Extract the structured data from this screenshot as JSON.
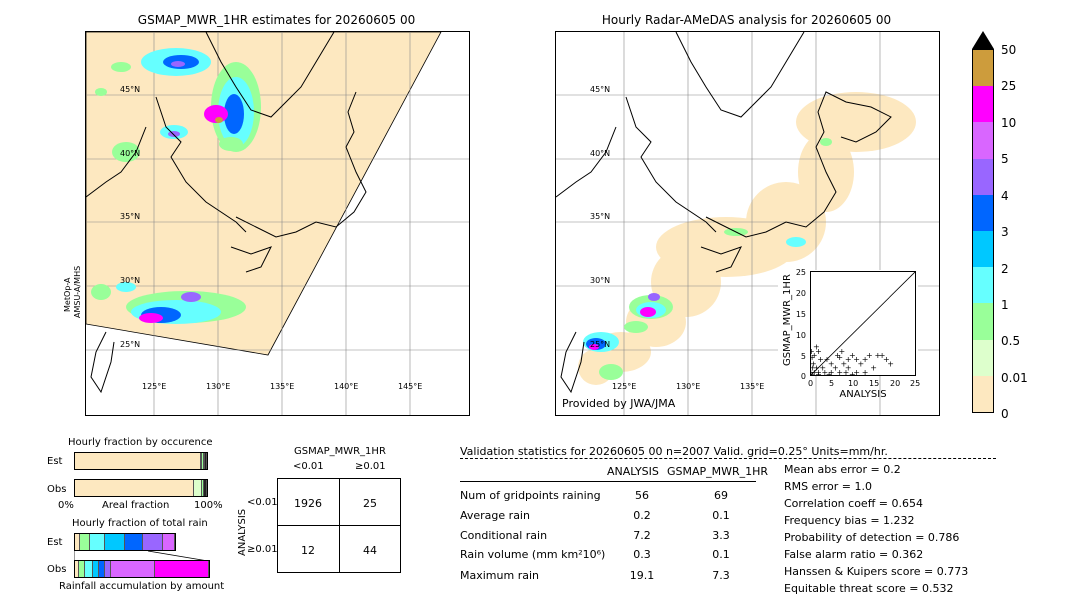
{
  "left_map": {
    "title": "GSMAP_MWR_1HR estimates for 20260605 00",
    "side_label_1": "MetOp-A",
    "side_label_2": "AMSU-A/MHS",
    "lat_labels": [
      "45°N",
      "40°N",
      "35°N",
      "30°N",
      "25°N"
    ],
    "lon_labels": [
      "125°E",
      "130°E",
      "135°E",
      "140°E",
      "145°E"
    ]
  },
  "right_map": {
    "title": "Hourly Radar-AMeDAS analysis for 20260605 00",
    "lat_labels": [
      "45°N",
      "40°N",
      "35°N",
      "30°N",
      "25°N"
    ],
    "lon_labels": [
      "125°E",
      "130°E",
      "135°E"
    ],
    "credit": "Provided by JWA/JMA"
  },
  "scatter": {
    "xlabel": "ANALYSIS",
    "ylabel": "GSMAP_MWR_1HR",
    "ticks": [
      "0",
      "5",
      "10",
      "15",
      "20",
      "25"
    ],
    "points": [
      [
        0.5,
        0.3
      ],
      [
        1,
        1
      ],
      [
        1.5,
        2
      ],
      [
        2,
        1
      ],
      [
        0.8,
        3
      ],
      [
        0.5,
        4.5
      ],
      [
        2.5,
        4
      ],
      [
        3,
        2
      ],
      [
        1,
        5
      ],
      [
        2,
        6
      ],
      [
        3.5,
        1
      ],
      [
        4,
        4
      ],
      [
        5,
        3
      ],
      [
        5,
        1
      ],
      [
        6,
        2
      ],
      [
        6.5,
        5
      ],
      [
        7,
        4.5
      ],
      [
        7.5,
        6
      ],
      [
        8,
        3
      ],
      [
        8.5,
        1
      ],
      [
        9,
        4
      ],
      [
        10,
        5
      ],
      [
        11,
        4
      ],
      [
        12,
        3
      ],
      [
        13,
        4
      ],
      [
        14,
        5
      ],
      [
        15,
        2
      ],
      [
        16,
        5
      ],
      [
        17,
        5
      ],
      [
        18,
        4
      ],
      [
        19,
        3
      ],
      [
        0.3,
        6
      ],
      [
        1.5,
        7
      ],
      [
        0.2,
        1
      ],
      [
        0.6,
        2
      ],
      [
        2,
        0.5
      ],
      [
        4.5,
        0.5
      ],
      [
        7,
        1
      ],
      [
        11,
        1
      ],
      [
        13,
        1
      ],
      [
        9,
        2
      ],
      [
        10,
        0.5
      ]
    ]
  },
  "colorbar": {
    "labels": [
      "50",
      "25",
      "10",
      "5",
      "4",
      "3",
      "2",
      "1",
      "0.5",
      "0.01",
      "0"
    ],
    "colors": [
      "#cd9c3c",
      "#ff00ff",
      "#d966ff",
      "#9966ff",
      "#0066ff",
      "#00c8ff",
      "#66ffff",
      "#99ff99",
      "#ddffcc",
      "#fde8c0"
    ]
  },
  "occurrence": {
    "title": "Hourly fraction by occurence",
    "row_est": "Est",
    "row_obs": "Obs",
    "axis_left": "0%",
    "axis_mid": "Areal fraction",
    "axis_right": "100%",
    "est_fractions": [
      0.955,
      0.01,
      0.01,
      0.01,
      0.015
    ],
    "obs_fractions": [
      0.9,
      0.06,
      0.02,
      0.02
    ],
    "est_colors": [
      "#fde8c0",
      "#ddffcc",
      "#99ff99",
      "#66ffff",
      "#222222"
    ],
    "obs_colors": [
      "#fde8c0",
      "#ddffcc",
      "#99ff99",
      "#222222"
    ]
  },
  "total_rain": {
    "title": "Hourly fraction of total rain",
    "row_est": "Est",
    "row_obs": "Obs",
    "footer": "Rainfall accumulation by amount",
    "est_segments": [
      {
        "w": 5,
        "c": "#fde8c0"
      },
      {
        "w": 10,
        "c": "#99ff99"
      },
      {
        "w": 15,
        "c": "#66ffff"
      },
      {
        "w": 20,
        "c": "#00c8ff"
      },
      {
        "w": 18,
        "c": "#0066ff"
      },
      {
        "w": 20,
        "c": "#9966ff"
      },
      {
        "w": 12,
        "c": "#d966ff"
      }
    ],
    "obs_segments": [
      {
        "w": 4,
        "c": "#fde8c0"
      },
      {
        "w": 6,
        "c": "#99ff99"
      },
      {
        "w": 8,
        "c": "#66ffff"
      },
      {
        "w": 6,
        "c": "#00c8ff"
      },
      {
        "w": 6,
        "c": "#0066ff"
      },
      {
        "w": 6,
        "c": "#9966ff"
      },
      {
        "w": 44,
        "c": "#d966ff"
      },
      {
        "w": 54,
        "c": "#ff00ff"
      }
    ]
  },
  "contingency": {
    "title": "GSMAP_MWR_1HR",
    "col_lt": "<0.01",
    "col_ge": "≥0.01",
    "row_label": "ANALYSIS",
    "row_lt": "<0.01",
    "row_ge": "≥0.01",
    "cells": [
      "1926",
      "25",
      "12",
      "44"
    ]
  },
  "validation": {
    "header": "Validation statistics for 20260605 00  n=2007 Valid. grid=0.25° Units=mm/hr.",
    "col_analysis": "ANALYSIS",
    "col_gsmap": "GSMAP_MWR_1HR",
    "rows": [
      {
        "label": "Num of gridpoints raining",
        "analysis": "56",
        "gsmap": "69"
      },
      {
        "label": "Average rain",
        "analysis": "0.2",
        "gsmap": "0.1"
      },
      {
        "label": "Conditional rain",
        "analysis": "7.2",
        "gsmap": "3.3"
      },
      {
        "label": "Rain volume (mm km²10⁶)",
        "analysis": "0.3",
        "gsmap": "0.1"
      },
      {
        "label": "Maximum rain",
        "analysis": "19.1",
        "gsmap": "7.3"
      }
    ],
    "scores": [
      "Mean abs error =    0.2",
      "RMS error =    1.0",
      "Correlation coeff =  0.654",
      "Frequency bias =  1.232",
      "Probability of detection =  0.786",
      "False alarm ratio =  0.362",
      "Hanssen & Kuipers score =  0.773",
      "Equitable threat score =  0.532"
    ]
  }
}
